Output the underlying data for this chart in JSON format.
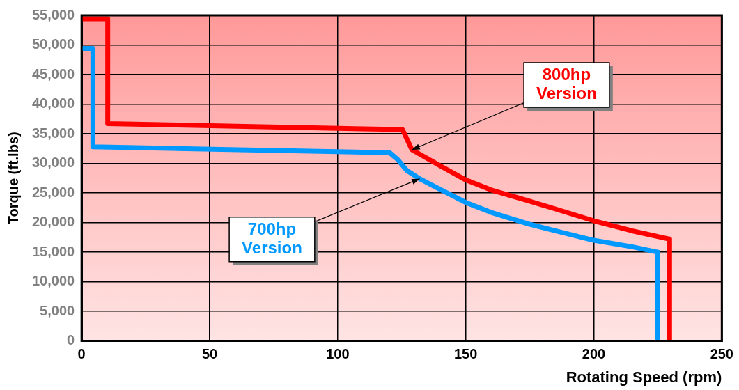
{
  "chart_data": {
    "type": "line",
    "xlabel": "Rotating Speed (rpm)",
    "ylabel": "Torque (ft.lbs)",
    "xlim": [
      0,
      250
    ],
    "xticks": [
      0,
      50,
      100,
      150,
      200,
      250
    ],
    "ylim": [
      0,
      55000
    ],
    "yticks": [
      {
        "value": 0,
        "label": "0"
      },
      {
        "value": 5000,
        "label": "5,000"
      },
      {
        "value": 10000,
        "label": "10,000"
      },
      {
        "value": 15000,
        "label": "15,000"
      },
      {
        "value": 20000,
        "label": "20,000"
      },
      {
        "value": 25000,
        "label": "25,000"
      },
      {
        "value": 30000,
        "label": "30,000"
      },
      {
        "value": 35000,
        "label": "35,000"
      },
      {
        "value": 40000,
        "label": "40,000"
      },
      {
        "value": 45000,
        "label": "45,000"
      },
      {
        "value": 50000,
        "label": "50,000"
      },
      {
        "value": 55000,
        "label": "55,000"
      }
    ],
    "grid": true,
    "legend": false,
    "marker": "none",
    "line_style": "solid",
    "series": [
      {
        "color": "#ff0000",
        "x": [
          0,
          10.2,
          10.2,
          125.3,
          129,
          140,
          150,
          160,
          175,
          185,
          200,
          215,
          229.6,
          229.6
        ],
        "values": [
          54400,
          54400,
          36700,
          35700,
          32300,
          29600,
          27200,
          25500,
          23600,
          22300,
          20300,
          18600,
          17200,
          0
        ]
      },
      {
        "color": "#0099ff",
        "x": [
          0,
          4.4,
          4.4,
          120.3,
          123.3,
          127,
          132,
          140,
          150,
          160,
          175,
          185,
          200,
          215,
          225,
          225
        ],
        "values": [
          49400,
          49400,
          32800,
          31800,
          30700,
          28800,
          27400,
          25600,
          23400,
          21700,
          19700,
          18600,
          17000,
          15900,
          15000,
          0
        ]
      }
    ],
    "annotations": [
      {
        "text": "800hp Version",
        "x": 129,
        "y": 32300
      },
      {
        "text": "700hp Version",
        "x": 132,
        "y": 27400
      }
    ]
  }
}
